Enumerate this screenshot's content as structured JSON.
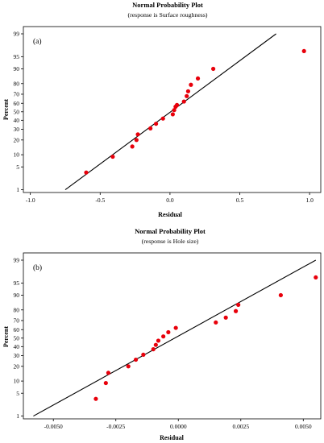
{
  "chart_data": [
    {
      "type": "scatter",
      "title": "Normal Probability Plot",
      "subtitle": "(response is Surface roughness)",
      "panel_label": "(a)",
      "xlabel": "Residual",
      "ylabel": "Percent",
      "xlim": [
        -1.05,
        1.08
      ],
      "x_ticks": [
        -1.0,
        -0.5,
        0.0,
        0.5,
        1.0
      ],
      "x_tick_labels": [
        "-1.0",
        "-0.5",
        "0.0",
        "0.5",
        "1.0"
      ],
      "y_scale": "normal-probability",
      "y_ticks": [
        1,
        5,
        10,
        20,
        30,
        40,
        50,
        60,
        70,
        80,
        90,
        95,
        99
      ],
      "y_tick_labels": [
        "1",
        "5",
        "10",
        "20",
        "30",
        "40",
        "50",
        "60",
        "70",
        "80",
        "90",
        "95",
        "99"
      ],
      "fit_line": {
        "x": [
          -0.75,
          0.76
        ],
        "y": [
          1,
          99
        ]
      },
      "points": {
        "x": [
          -0.6,
          -0.41,
          -0.27,
          -0.24,
          -0.23,
          -0.14,
          -0.1,
          -0.05,
          0.02,
          0.03,
          0.04,
          0.05,
          0.1,
          0.12,
          0.13,
          0.15,
          0.2,
          0.31,
          0.96
        ],
        "y": [
          3.5,
          9,
          15,
          20,
          25,
          31,
          36,
          42,
          47,
          52,
          56,
          58,
          62,
          68,
          73,
          79,
          84,
          90,
          96.5
        ]
      },
      "colors": {
        "points": "#e8000b",
        "line": "#000000"
      }
    },
    {
      "type": "scatter",
      "title": "Normal Probability Plot",
      "subtitle": "(response is Hole size)",
      "panel_label": "(b)",
      "xlabel": "Residual",
      "ylabel": "Percent",
      "xlim": [
        -0.0062,
        0.0057
      ],
      "x_ticks": [
        -0.005,
        -0.0025,
        0.0,
        0.0025,
        0.005
      ],
      "x_tick_labels": [
        "-0.0050",
        "-0.0025",
        "0.0000",
        "0.0025",
        "0.0050"
      ],
      "y_scale": "normal-probability",
      "y_ticks": [
        1,
        5,
        10,
        20,
        30,
        40,
        50,
        60,
        70,
        80,
        90,
        95,
        99
      ],
      "y_tick_labels": [
        "1",
        "5",
        "10",
        "20",
        "30",
        "40",
        "50",
        "60",
        "70",
        "80",
        "90",
        "95",
        "99"
      ],
      "fit_line": {
        "x": [
          -0.0058,
          0.0055
        ],
        "y": [
          1,
          99
        ]
      },
      "points": {
        "x": [
          -0.0033,
          -0.0029,
          -0.0028,
          -0.002,
          -0.0017,
          -0.0014,
          -0.001,
          -0.0009,
          -0.0008,
          -0.0006,
          -0.0004,
          -0.0001,
          0.0015,
          0.0019,
          0.0023,
          0.0024,
          0.0041,
          0.0055
        ],
        "y": [
          3.5,
          9,
          15,
          20,
          26,
          31,
          37,
          42,
          47,
          52,
          57,
          62,
          68,
          73,
          79,
          84,
          90,
          96.5
        ]
      },
      "colors": {
        "points": "#e8000b",
        "line": "#000000"
      }
    }
  ]
}
